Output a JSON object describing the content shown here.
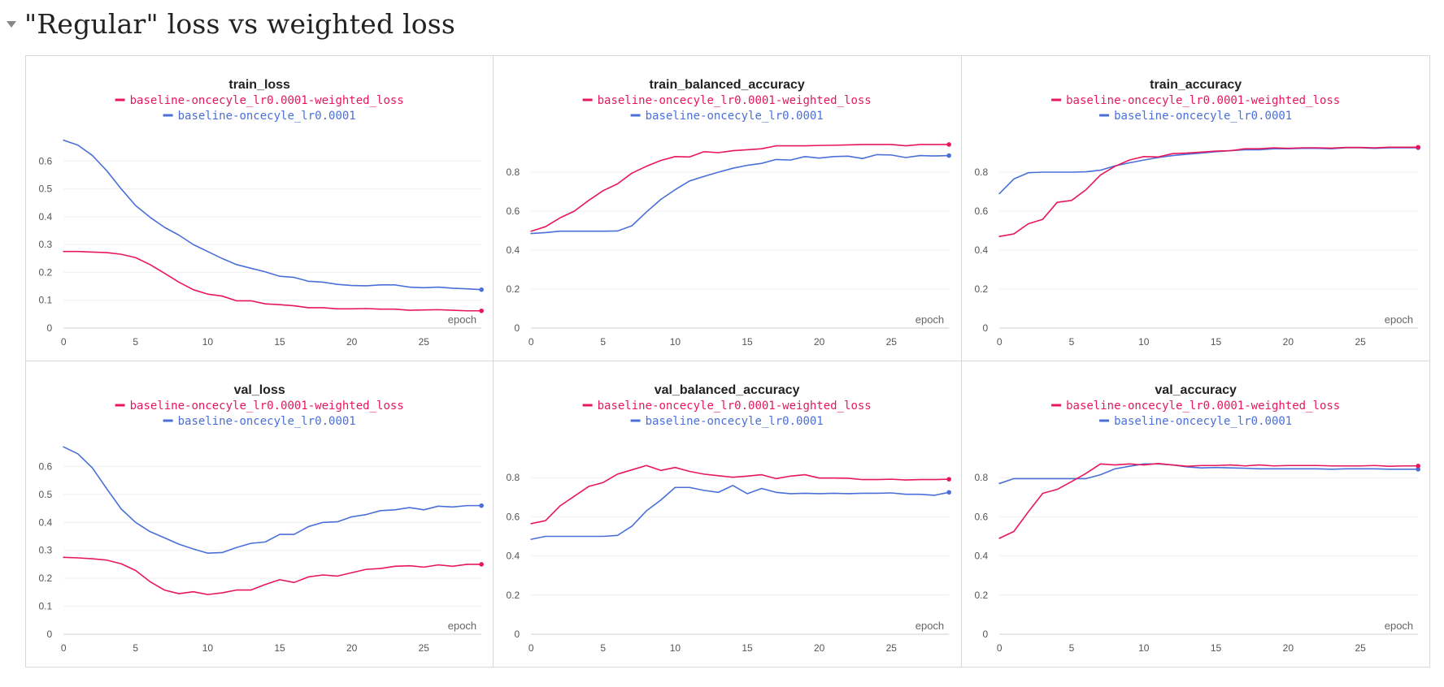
{
  "section": {
    "title": "\"Regular\" loss vs weighted loss"
  },
  "colors": {
    "weighted": "#e8175d",
    "baseline": "#4a6fd8"
  },
  "chart_data": [
    {
      "type": "line",
      "title": "train_loss",
      "xlabel": "epoch",
      "xlim": [
        0,
        29
      ],
      "ylim": [
        0,
        0.7
      ],
      "xticks": [
        0,
        5,
        10,
        15,
        20,
        25
      ],
      "yticks": [
        0,
        0.1,
        0.2,
        0.3,
        0.4,
        0.5,
        0.6
      ],
      "ytick_labels": [
        "0",
        "0.1",
        "0.2",
        "0.3",
        "0.4",
        "0.5",
        "0.6"
      ],
      "grid": true,
      "legend_position": "top",
      "series": [
        {
          "name": "baseline-oncecyle_lr0.0001-weighted_loss",
          "color": "#e8175d",
          "values": [
            0.275,
            0.275,
            0.273,
            0.271,
            0.265,
            0.253,
            0.228,
            0.197,
            0.165,
            0.138,
            0.122,
            0.115,
            0.098,
            0.098,
            0.087,
            0.084,
            0.08,
            0.073,
            0.073,
            0.069,
            0.069,
            0.07,
            0.068,
            0.068,
            0.064,
            0.065,
            0.066,
            0.064,
            0.062,
            0.062
          ]
        },
        {
          "name": "baseline-oncecyle_lr0.0001",
          "color": "#4a6fd8",
          "values": [
            0.675,
            0.657,
            0.62,
            0.565,
            0.5,
            0.44,
            0.398,
            0.362,
            0.334,
            0.3,
            0.275,
            0.25,
            0.228,
            0.215,
            0.202,
            0.186,
            0.182,
            0.168,
            0.165,
            0.157,
            0.153,
            0.152,
            0.155,
            0.155,
            0.147,
            0.145,
            0.147,
            0.143,
            0.141,
            0.138
          ]
        }
      ]
    },
    {
      "type": "line",
      "title": "train_balanced_accuracy",
      "xlabel": "epoch",
      "xlim": [
        0,
        29
      ],
      "ylim": [
        0,
        1.0
      ],
      "xticks": [
        0,
        5,
        10,
        15,
        20,
        25
      ],
      "yticks": [
        0,
        0.2,
        0.4,
        0.6,
        0.8
      ],
      "ytick_labels": [
        "0",
        "0.2",
        "0.4",
        "0.6",
        "0.8"
      ],
      "grid": true,
      "legend_position": "top",
      "series": [
        {
          "name": "baseline-oncecyle_lr0.0001-weighted_loss",
          "color": "#e8175d",
          "values": [
            0.497,
            0.52,
            0.565,
            0.6,
            0.655,
            0.705,
            0.74,
            0.795,
            0.83,
            0.86,
            0.88,
            0.878,
            0.905,
            0.9,
            0.91,
            0.915,
            0.92,
            0.935,
            0.935,
            0.935,
            0.937,
            0.938,
            0.94,
            0.942,
            0.942,
            0.942,
            0.935,
            0.942,
            0.942,
            0.942
          ]
        },
        {
          "name": "baseline-oncecyle_lr0.0001",
          "color": "#4a6fd8",
          "values": [
            0.485,
            0.49,
            0.497,
            0.497,
            0.497,
            0.497,
            0.498,
            0.525,
            0.595,
            0.66,
            0.71,
            0.755,
            0.778,
            0.8,
            0.82,
            0.835,
            0.845,
            0.865,
            0.862,
            0.88,
            0.872,
            0.88,
            0.882,
            0.87,
            0.89,
            0.888,
            0.875,
            0.885,
            0.883,
            0.885
          ]
        }
      ]
    },
    {
      "type": "line",
      "title": "train_accuracy",
      "xlabel": "epoch",
      "xlim": [
        0,
        29
      ],
      "ylim": [
        0,
        1.0
      ],
      "xticks": [
        0,
        5,
        10,
        15,
        20,
        25
      ],
      "yticks": [
        0,
        0.2,
        0.4,
        0.6,
        0.8
      ],
      "ytick_labels": [
        "0",
        "0.2",
        "0.4",
        "0.6",
        "0.8"
      ],
      "grid": true,
      "legend_position": "top",
      "series": [
        {
          "name": "baseline-oncecyle_lr0.0001-weighted_loss",
          "color": "#e8175d",
          "values": [
            0.47,
            0.483,
            0.535,
            0.558,
            0.645,
            0.655,
            0.71,
            0.785,
            0.83,
            0.862,
            0.88,
            0.878,
            0.895,
            0.898,
            0.903,
            0.908,
            0.91,
            0.92,
            0.92,
            0.925,
            0.922,
            0.925,
            0.925,
            0.923,
            0.927,
            0.927,
            0.925,
            0.928,
            0.928,
            0.928
          ]
        },
        {
          "name": "baseline-oncecyle_lr0.0001",
          "color": "#4a6fd8",
          "values": [
            0.69,
            0.765,
            0.797,
            0.8,
            0.8,
            0.8,
            0.802,
            0.81,
            0.832,
            0.848,
            0.862,
            0.875,
            0.885,
            0.892,
            0.898,
            0.905,
            0.91,
            0.915,
            0.915,
            0.92,
            0.92,
            0.922,
            0.922,
            0.92,
            0.925,
            0.925,
            0.922,
            0.925,
            0.925,
            0.925
          ]
        }
      ]
    },
    {
      "type": "line",
      "title": "val_loss",
      "xlabel": "epoch",
      "xlim": [
        0,
        29
      ],
      "ylim": [
        0,
        0.7
      ],
      "xticks": [
        0,
        5,
        10,
        15,
        20,
        25
      ],
      "yticks": [
        0,
        0.1,
        0.2,
        0.3,
        0.4,
        0.5,
        0.6
      ],
      "ytick_labels": [
        "0",
        "0.1",
        "0.2",
        "0.3",
        "0.4",
        "0.5",
        "0.6"
      ],
      "grid": true,
      "legend_position": "top",
      "series": [
        {
          "name": "baseline-oncecyle_lr0.0001-weighted_loss",
          "color": "#e8175d",
          "values": [
            0.275,
            0.273,
            0.27,
            0.265,
            0.252,
            0.228,
            0.188,
            0.158,
            0.145,
            0.152,
            0.142,
            0.148,
            0.158,
            0.158,
            0.178,
            0.195,
            0.185,
            0.205,
            0.212,
            0.208,
            0.22,
            0.232,
            0.235,
            0.243,
            0.245,
            0.24,
            0.248,
            0.243,
            0.25,
            0.25
          ]
        },
        {
          "name": "baseline-oncecyle_lr0.0001",
          "color": "#4a6fd8",
          "values": [
            0.67,
            0.645,
            0.595,
            0.52,
            0.448,
            0.4,
            0.367,
            0.345,
            0.322,
            0.305,
            0.29,
            0.292,
            0.31,
            0.325,
            0.33,
            0.357,
            0.357,
            0.385,
            0.4,
            0.402,
            0.42,
            0.428,
            0.442,
            0.445,
            0.453,
            0.445,
            0.458,
            0.455,
            0.46,
            0.46
          ]
        }
      ]
    },
    {
      "type": "line",
      "title": "val_balanced_accuracy",
      "xlabel": "epoch",
      "xlim": [
        0,
        29
      ],
      "ylim": [
        0,
        1.0
      ],
      "xticks": [
        0,
        5,
        10,
        15,
        20,
        25
      ],
      "yticks": [
        0,
        0.2,
        0.4,
        0.6,
        0.8
      ],
      "ytick_labels": [
        "0",
        "0.2",
        "0.4",
        "0.6",
        "0.8"
      ],
      "grid": true,
      "legend_position": "top",
      "series": [
        {
          "name": "baseline-oncecyle_lr0.0001-weighted_loss",
          "color": "#e8175d",
          "values": [
            0.565,
            0.58,
            0.655,
            0.705,
            0.755,
            0.775,
            0.818,
            0.84,
            0.862,
            0.837,
            0.852,
            0.832,
            0.818,
            0.81,
            0.802,
            0.808,
            0.815,
            0.795,
            0.808,
            0.815,
            0.798,
            0.798,
            0.797,
            0.79,
            0.79,
            0.792,
            0.788,
            0.79,
            0.79,
            0.792
          ]
        },
        {
          "name": "baseline-oncecyle_lr0.0001",
          "color": "#4a6fd8",
          "values": [
            0.485,
            0.5,
            0.5,
            0.5,
            0.5,
            0.5,
            0.505,
            0.552,
            0.63,
            0.685,
            0.75,
            0.75,
            0.735,
            0.725,
            0.76,
            0.718,
            0.745,
            0.725,
            0.718,
            0.72,
            0.718,
            0.72,
            0.718,
            0.72,
            0.72,
            0.722,
            0.715,
            0.715,
            0.71,
            0.725
          ]
        }
      ]
    },
    {
      "type": "line",
      "title": "val_accuracy",
      "xlabel": "epoch",
      "xlim": [
        0,
        29
      ],
      "ylim": [
        0,
        1.0
      ],
      "xticks": [
        0,
        5,
        10,
        15,
        20,
        25
      ],
      "yticks": [
        0,
        0.2,
        0.4,
        0.6,
        0.8
      ],
      "ytick_labels": [
        "0",
        "0.2",
        "0.4",
        "0.6",
        "0.8"
      ],
      "grid": true,
      "legend_position": "top",
      "series": [
        {
          "name": "baseline-oncecyle_lr0.0001-weighted_loss",
          "color": "#e8175d",
          "values": [
            0.49,
            0.525,
            0.625,
            0.72,
            0.74,
            0.78,
            0.822,
            0.87,
            0.865,
            0.87,
            0.865,
            0.872,
            0.865,
            0.858,
            0.862,
            0.862,
            0.865,
            0.86,
            0.865,
            0.86,
            0.862,
            0.862,
            0.862,
            0.86,
            0.86,
            0.86,
            0.862,
            0.858,
            0.86,
            0.86
          ]
        },
        {
          "name": "baseline-oncecyle_lr0.0001",
          "color": "#4a6fd8",
          "values": [
            0.77,
            0.795,
            0.795,
            0.795,
            0.795,
            0.795,
            0.795,
            0.815,
            0.845,
            0.858,
            0.87,
            0.87,
            0.865,
            0.855,
            0.85,
            0.852,
            0.85,
            0.848,
            0.845,
            0.845,
            0.845,
            0.845,
            0.845,
            0.843,
            0.845,
            0.845,
            0.845,
            0.843,
            0.843,
            0.843
          ]
        }
      ]
    }
  ]
}
